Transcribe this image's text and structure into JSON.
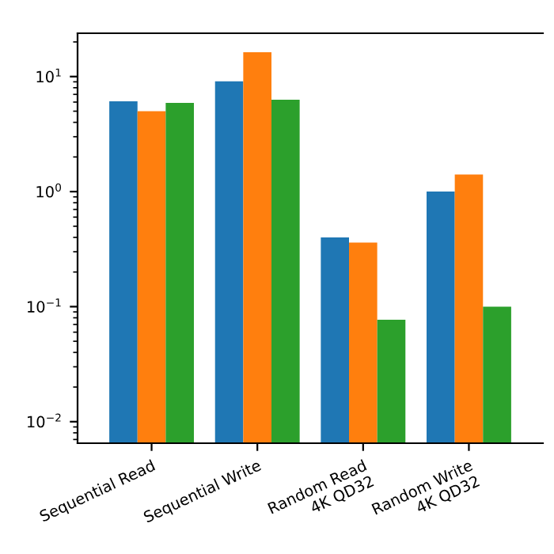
{
  "chart_data": {
    "type": "bar",
    "log": "y",
    "categories": [
      "Sequential Read",
      "Sequential Write",
      "Random Read\n4K QD32",
      "Random Write\n4K QD32"
    ],
    "series": [
      {
        "color": "#1f77b4",
        "values": [
          6.1,
          9.1,
          0.4,
          1.0
        ]
      },
      {
        "color": "#ff7f0e",
        "values": [
          5.0,
          16.3,
          0.36,
          1.41
        ]
      },
      {
        "color": "#2ca02c",
        "values": [
          5.9,
          6.3,
          0.077,
          0.1
        ]
      }
    ],
    "ylim": [
      0.0065,
      23.8
    ],
    "yticks": [
      {
        "value": 0.01,
        "label": "10$^{−2}$"
      },
      {
        "value": 0.1,
        "label": "10$^{−1}$"
      },
      {
        "value": 1,
        "label": "10$^{0}$"
      },
      {
        "value": 10,
        "label": "10$^{1}$"
      }
    ],
    "grid": false,
    "legend": false
  }
}
